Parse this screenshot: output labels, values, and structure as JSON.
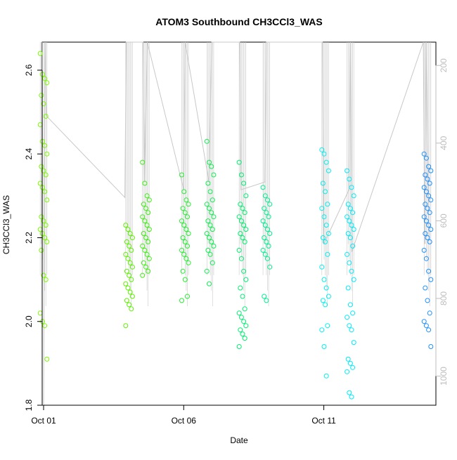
{
  "chart_data": {
    "type": "scatter",
    "title": "ATOM3 Southbound CH3CCl3_WAS",
    "xlabel": "Date",
    "ylabel": "CH3CCl3_WAS",
    "x_ticks": [
      "Oct 01",
      "Oct 06",
      "Oct 11"
    ],
    "x_range_days": [
      30.95,
      45.0
    ],
    "y_ticks": [
      "1.8",
      "2.0",
      "2.2",
      "2.4",
      "2.6"
    ],
    "ylim": [
      1.8,
      2.667
    ],
    "y2_ticks": [
      "200",
      "400",
      "600",
      "800",
      "1000"
    ],
    "y2lim": [
      1075,
      140
    ],
    "y2_note": "right axis: pressure-like altitude trace, no label printed",
    "grid": false,
    "legend": "none",
    "colors": {
      "early": "#7cfc00",
      "mid": "#00ff7f",
      "late": "#00ffff",
      "last": "#1e90ff",
      "altitude_trace": "#c8c8c8",
      "axis": "#000000",
      "right_axis": "#bdbdbd"
    },
    "clusters": [
      {
        "date": "2016-10-01",
        "x": 31.0,
        "color": "#7cfc00",
        "values": [
          2.64,
          2.59,
          2.58,
          2.57,
          2.54,
          2.52,
          2.49,
          2.47,
          2.43,
          2.42,
          2.4,
          2.37,
          2.36,
          2.35,
          2.33,
          2.32,
          2.31,
          2.29,
          2.25,
          2.24,
          2.23,
          2.22,
          2.21,
          2.2,
          2.19,
          2.17,
          2.11,
          2.1,
          2.02,
          2.0,
          1.99,
          1.91
        ]
      },
      {
        "date": "2016-10-04",
        "x": 34.05,
        "color": "#5cf000",
        "values": [
          2.23,
          2.22,
          2.21,
          2.2,
          2.19,
          2.18,
          2.17,
          2.16,
          2.15,
          2.14,
          2.13,
          2.12,
          2.11,
          2.1,
          2.09,
          2.08,
          2.07,
          2.06,
          2.05,
          2.04,
          2.03,
          1.99
        ]
      },
      {
        "date": "2016-10-04",
        "x": 34.65,
        "color": "#3cef10",
        "values": [
          2.38,
          2.33,
          2.3,
          2.29,
          2.28,
          2.27,
          2.26,
          2.25,
          2.24,
          2.23,
          2.22,
          2.21,
          2.2,
          2.19,
          2.18,
          2.17,
          2.16,
          2.15,
          2.14,
          2.13,
          2.12,
          2.11
        ]
      },
      {
        "date": "2016-10-06",
        "x": 36.05,
        "color": "#24ef30",
        "values": [
          2.35,
          2.31,
          2.29,
          2.28,
          2.27,
          2.26,
          2.25,
          2.24,
          2.23,
          2.22,
          2.21,
          2.2,
          2.19,
          2.18,
          2.17,
          2.16,
          2.15,
          2.14,
          2.12,
          2.1,
          2.06,
          2.05
        ]
      },
      {
        "date": "2016-10-06",
        "x": 36.95,
        "color": "#10ef50",
        "values": [
          2.43,
          2.38,
          2.37,
          2.35,
          2.33,
          2.31,
          2.29,
          2.28,
          2.27,
          2.26,
          2.25,
          2.24,
          2.23,
          2.22,
          2.21,
          2.2,
          2.19,
          2.18,
          2.17,
          2.16,
          2.14,
          2.12,
          2.09
        ]
      },
      {
        "date": "2016-10-08",
        "x": 38.1,
        "color": "#00ef70",
        "values": [
          2.38,
          2.35,
          2.33,
          2.3,
          2.28,
          2.27,
          2.26,
          2.25,
          2.24,
          2.23,
          2.22,
          2.21,
          2.2,
          2.19,
          2.17,
          2.15,
          2.12,
          2.1,
          2.08,
          2.06,
          2.03,
          2.02,
          2.01,
          2.0,
          1.99,
          1.98,
          1.97,
          1.96,
          1.94
        ]
      },
      {
        "date": "2016-10-08",
        "x": 38.95,
        "color": "#00ef90",
        "values": [
          2.32,
          2.3,
          2.29,
          2.28,
          2.27,
          2.26,
          2.25,
          2.24,
          2.23,
          2.22,
          2.21,
          2.2,
          2.19,
          2.18,
          2.17,
          2.16,
          2.15,
          2.13,
          2.06,
          2.05
        ]
      },
      {
        "date": "2016-10-11",
        "x": 41.05,
        "color": "#00f0f0",
        "values": [
          2.41,
          2.4,
          2.38,
          2.36,
          2.33,
          2.31,
          2.28,
          2.27,
          2.25,
          2.23,
          2.21,
          2.2,
          2.19,
          2.16,
          2.13,
          2.1,
          2.08,
          2.06,
          2.05,
          2.04,
          1.99,
          1.98,
          1.94,
          1.87
        ]
      },
      {
        "date": "2016-10-12",
        "x": 41.95,
        "color": "#00ecf8",
        "values": [
          2.36,
          2.34,
          2.32,
          2.3,
          2.28,
          2.27,
          2.26,
          2.25,
          2.24,
          2.23,
          2.22,
          2.21,
          2.2,
          2.18,
          2.16,
          2.14,
          2.12,
          2.1,
          2.08,
          2.04,
          2.02,
          2.01,
          1.99,
          1.98,
          1.95,
          1.91,
          1.9,
          1.89,
          1.88,
          1.83,
          1.82
        ]
      },
      {
        "date": "2016-10-14",
        "x": 44.7,
        "color": "#1e90ff",
        "values": [
          2.4,
          2.39,
          2.37,
          2.36,
          2.35,
          2.34,
          2.33,
          2.32,
          2.31,
          2.3,
          2.29,
          2.28,
          2.27,
          2.26,
          2.25,
          2.24,
          2.23,
          2.22,
          2.21,
          2.2,
          2.19,
          2.17,
          2.15,
          2.12,
          2.1,
          2.08,
          2.05,
          2.02,
          2.0,
          1.99,
          1.98,
          1.94
        ]
      }
    ],
    "altitude_trace": [
      [
        31.0,
        1075
      ],
      [
        31.05,
        140
      ],
      [
        31.1,
        330
      ],
      [
        33.9,
        540
      ],
      [
        33.95,
        140
      ],
      [
        34.55,
        140
      ],
      [
        34.6,
        500
      ],
      [
        34.7,
        140
      ],
      [
        36.0,
        520
      ],
      [
        36.05,
        140
      ],
      [
        36.9,
        500
      ],
      [
        37.0,
        140
      ],
      [
        38.0,
        140
      ],
      [
        38.05,
        520
      ],
      [
        38.9,
        500
      ],
      [
        38.95,
        140
      ],
      [
        40.95,
        140
      ],
      [
        41.0,
        660
      ],
      [
        41.9,
        520
      ],
      [
        41.95,
        140
      ],
      [
        42.0,
        680
      ],
      [
        44.55,
        140
      ],
      [
        44.6,
        660
      ],
      [
        44.65,
        140
      ],
      [
        44.75,
        640
      ]
    ]
  }
}
